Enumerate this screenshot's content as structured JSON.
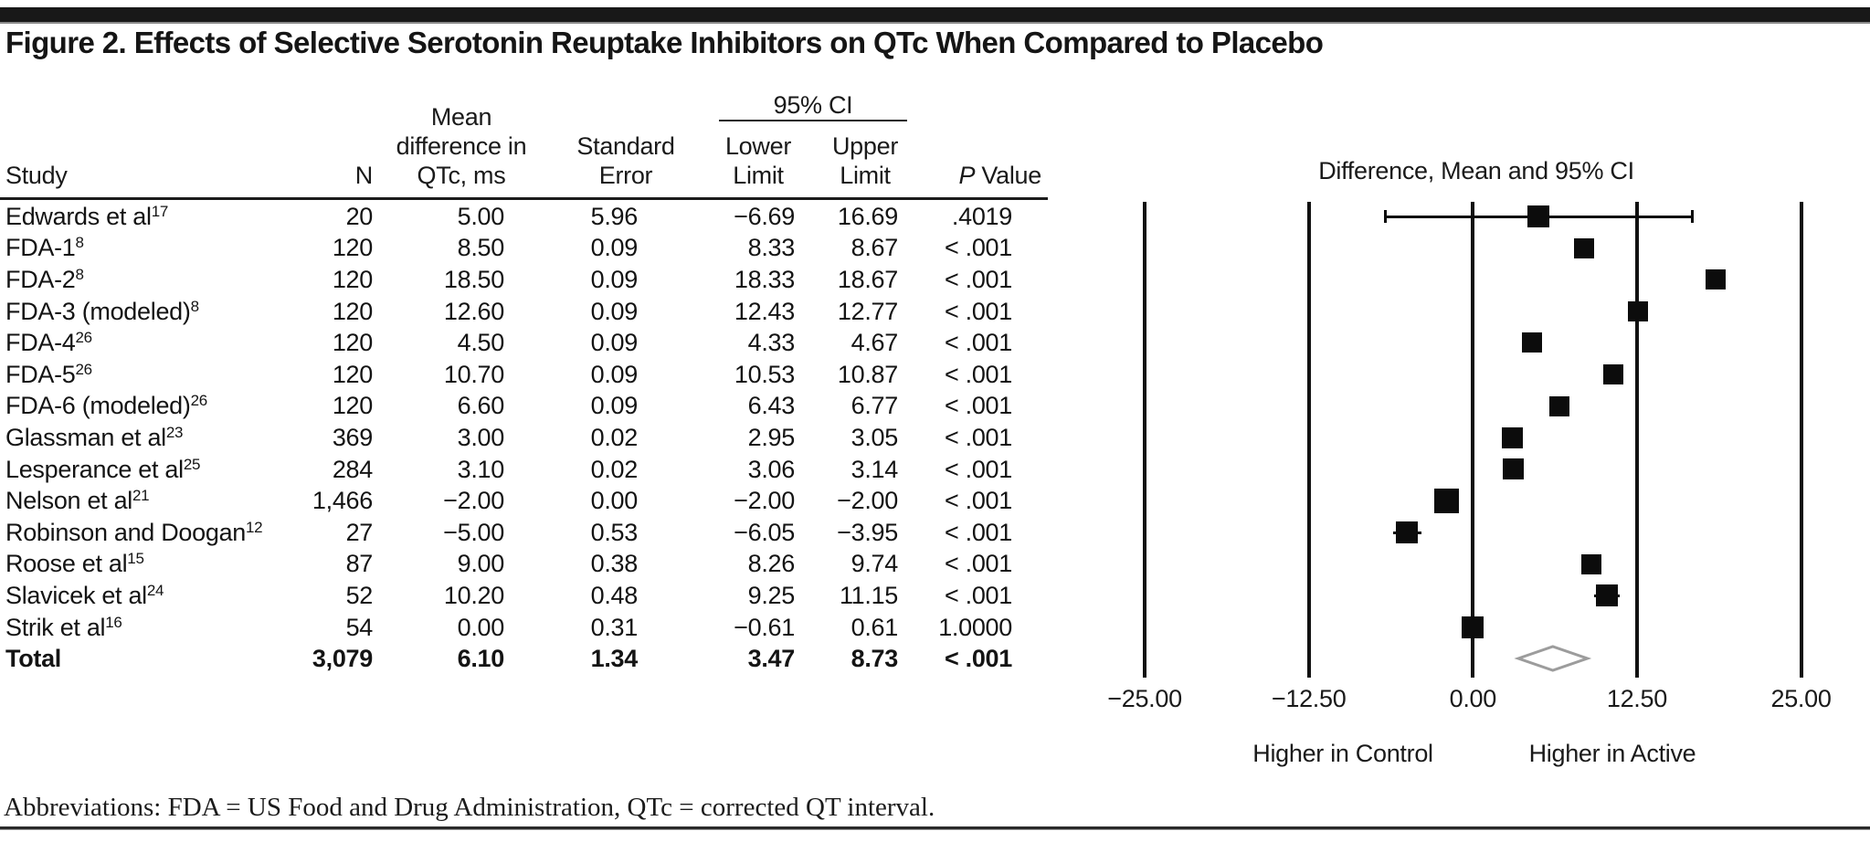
{
  "figure": {
    "title": "Figure 2. Effects of Selective Serotonin Reuptake Inhibitors on QTc When Compared to Placebo",
    "footnote": "Abbreviations: FDA = US Food and Drug Administration, QTc = corrected QT interval."
  },
  "table": {
    "headers": {
      "study": "Study",
      "n": "N",
      "mean_lines": [
        "Mean",
        "difference in",
        "QTc, ms"
      ],
      "se_lines": [
        "Standard",
        "Error"
      ],
      "ci_group": "95% CI",
      "lower_lines": [
        "Lower",
        "Limit"
      ],
      "upper_lines": [
        "Upper",
        "Limit"
      ],
      "p_italic": "P",
      "p_rest": " Value"
    },
    "rows": [
      {
        "study": "Edwards et al",
        "sup": "17",
        "n": "20",
        "mean": "5.00",
        "se": "5.96",
        "lower": "−6.69",
        "upper": "16.69",
        "p": ".4019",
        "mean_v": 5.0,
        "lo_v": -6.69,
        "hi_v": 16.69,
        "size": 24,
        "ci_line": true,
        "caps": true
      },
      {
        "study": "FDA-1",
        "sup": "8",
        "n": "120",
        "mean": "8.50",
        "se": "0.09",
        "lower": "8.33",
        "upper": "8.67",
        "p": "< .001",
        "mean_v": 8.5,
        "lo_v": 8.33,
        "hi_v": 8.67,
        "size": 22,
        "ci_line": false,
        "caps": false
      },
      {
        "study": "FDA-2",
        "sup": "8",
        "n": "120",
        "mean": "18.50",
        "se": "0.09",
        "lower": "18.33",
        "upper": "18.67",
        "p": "< .001",
        "mean_v": 18.5,
        "lo_v": 18.33,
        "hi_v": 18.67,
        "size": 22,
        "ci_line": false,
        "caps": false
      },
      {
        "study": "FDA-3 (modeled)",
        "sup": "8",
        "n": "120",
        "mean": "12.60",
        "se": "0.09",
        "lower": "12.43",
        "upper": "12.77",
        "p": "< .001",
        "mean_v": 12.6,
        "lo_v": 12.43,
        "hi_v": 12.77,
        "size": 22,
        "ci_line": false,
        "caps": false
      },
      {
        "study": "FDA-4",
        "sup": "26",
        "n": "120",
        "mean": "4.50",
        "se": "0.09",
        "lower": "4.33",
        "upper": "4.67",
        "p": "< .001",
        "mean_v": 4.5,
        "lo_v": 4.33,
        "hi_v": 4.67,
        "size": 22,
        "ci_line": false,
        "caps": false
      },
      {
        "study": "FDA-5",
        "sup": "26",
        "n": "120",
        "mean": "10.70",
        "se": "0.09",
        "lower": "10.53",
        "upper": "10.87",
        "p": "< .001",
        "mean_v": 10.7,
        "lo_v": 10.53,
        "hi_v": 10.87,
        "size": 22,
        "ci_line": false,
        "caps": false
      },
      {
        "study": "FDA-6 (modeled)",
        "sup": "26",
        "n": "120",
        "mean": "6.60",
        "se": "0.09",
        "lower": "6.43",
        "upper": "6.77",
        "p": "< .001",
        "mean_v": 6.6,
        "lo_v": 6.43,
        "hi_v": 6.77,
        "size": 22,
        "ci_line": false,
        "caps": false
      },
      {
        "study": "Glassman et al",
        "sup": "23",
        "n": "369",
        "mean": "3.00",
        "se": "0.02",
        "lower": "2.95",
        "upper": "3.05",
        "p": "< .001",
        "mean_v": 3.0,
        "lo_v": 2.95,
        "hi_v": 3.05,
        "size": 23,
        "ci_line": false,
        "caps": false
      },
      {
        "study": "Lesperance et al",
        "sup": "25",
        "n": "284",
        "mean": "3.10",
        "se": "0.02",
        "lower": "3.06",
        "upper": "3.14",
        "p": "< .001",
        "mean_v": 3.1,
        "lo_v": 3.06,
        "hi_v": 3.14,
        "size": 23,
        "ci_line": false,
        "caps": false
      },
      {
        "study": "Nelson et al",
        "sup": "21",
        "n": "1,466",
        "mean": "−2.00",
        "se": "0.00",
        "lower": "−2.00",
        "upper": "−2.00",
        "p": "< .001",
        "mean_v": -2.0,
        "lo_v": -2.0,
        "hi_v": -2.0,
        "size": 27,
        "ci_line": false,
        "caps": false
      },
      {
        "study": "Robinson and Doogan",
        "sup": "12",
        "n": "27",
        "mean": "−5.00",
        "se": "0.53",
        "lower": "−6.05",
        "upper": "−3.95",
        "p": "< .001",
        "mean_v": -5.0,
        "lo_v": -6.05,
        "hi_v": -3.95,
        "size": 24,
        "ci_line": true,
        "caps": false
      },
      {
        "study": "Roose et al",
        "sup": "15",
        "n": "87",
        "mean": "9.00",
        "se": "0.38",
        "lower": "8.26",
        "upper": "9.74",
        "p": "< .001",
        "mean_v": 9.0,
        "lo_v": 8.26,
        "hi_v": 9.74,
        "size": 22,
        "ci_line": false,
        "caps": false
      },
      {
        "study": "Slavicek et al",
        "sup": "24",
        "n": "52",
        "mean": "10.20",
        "se": "0.48",
        "lower": "9.25",
        "upper": "11.15",
        "p": "< .001",
        "mean_v": 10.2,
        "lo_v": 9.25,
        "hi_v": 11.15,
        "size": 24,
        "ci_line": true,
        "caps": false
      },
      {
        "study": "Strik et al",
        "sup": "16",
        "n": "54",
        "mean": "0.00",
        "se": "0.31",
        "lower": "−0.61",
        "upper": "0.61",
        "p": "1.0000",
        "mean_v": 0.0,
        "lo_v": -0.61,
        "hi_v": 0.61,
        "size": 24,
        "ci_line": false,
        "caps": false
      }
    ],
    "total": {
      "study": "Total",
      "n": "3,079",
      "mean": "6.10",
      "se": "1.34",
      "lower": "3.47",
      "upper": "8.73",
      "p": "< .001",
      "mean_v": 6.1,
      "lo_v": 3.47,
      "hi_v": 8.73
    }
  },
  "plot": {
    "title": "Difference, Mean and 95% CI",
    "tick_labels": [
      "−25.00",
      "−12.50",
      "0.00",
      "12.50",
      "25.00"
    ],
    "tick_values": [
      -25,
      -12.5,
      0,
      12.5,
      25
    ],
    "left_label": "Higher in Control",
    "right_label": "Higher in Active",
    "diamond_color": "#9c9c9c"
  },
  "chart_data": {
    "type": "scatter",
    "subtype": "forest-plot",
    "title": "Difference, Mean and 95% CI",
    "xlabel": "Mean difference in QTc, ms",
    "xlim": [
      -25,
      25
    ],
    "xticks": [
      -25,
      -12.5,
      0,
      12.5,
      25
    ],
    "xtick_labels": [
      "−25.00",
      "−12.50",
      "0.00",
      "12.50",
      "25.00"
    ],
    "x_direction_labels": {
      "negative": "Higher in Control",
      "positive": "Higher in Active"
    },
    "studies": [
      "Edwards et al",
      "FDA-1",
      "FDA-2",
      "FDA-3 (modeled)",
      "FDA-4",
      "FDA-5",
      "FDA-6 (modeled)",
      "Glassman et al",
      "Lesperance et al",
      "Nelson et al",
      "Robinson and Doogan",
      "Roose et al",
      "Slavicek et al",
      "Strik et al"
    ],
    "n": [
      20,
      120,
      120,
      120,
      120,
      120,
      120,
      369,
      284,
      1466,
      27,
      87,
      52,
      54
    ],
    "means": [
      5.0,
      8.5,
      18.5,
      12.6,
      4.5,
      10.7,
      6.6,
      3.0,
      3.1,
      -2.0,
      -5.0,
      9.0,
      10.2,
      0.0
    ],
    "standard_error": [
      5.96,
      0.09,
      0.09,
      0.09,
      0.09,
      0.09,
      0.09,
      0.02,
      0.02,
      0.0,
      0.53,
      0.38,
      0.48,
      0.31
    ],
    "ci_lower": [
      -6.69,
      8.33,
      18.33,
      12.43,
      4.33,
      10.53,
      6.43,
      2.95,
      3.06,
      -2.0,
      -6.05,
      8.26,
      9.25,
      -0.61
    ],
    "ci_upper": [
      16.69,
      8.67,
      18.67,
      12.77,
      4.67,
      10.87,
      6.77,
      3.05,
      3.14,
      -2.0,
      -3.95,
      9.74,
      11.15,
      0.61
    ],
    "p_values": [
      ".4019",
      "< .001",
      "< .001",
      "< .001",
      "< .001",
      "< .001",
      "< .001",
      "< .001",
      "< .001",
      "< .001",
      "< .001",
      "< .001",
      "< .001",
      "1.0000"
    ],
    "total": {
      "label": "Total",
      "n": 3079,
      "mean": 6.1,
      "se": 1.34,
      "ci_lower": 3.47,
      "ci_upper": 8.73,
      "p": "< .001",
      "marker": "diamond"
    },
    "marker": "square",
    "grid": "vertical-lines-at-ticks",
    "legend": "none"
  }
}
